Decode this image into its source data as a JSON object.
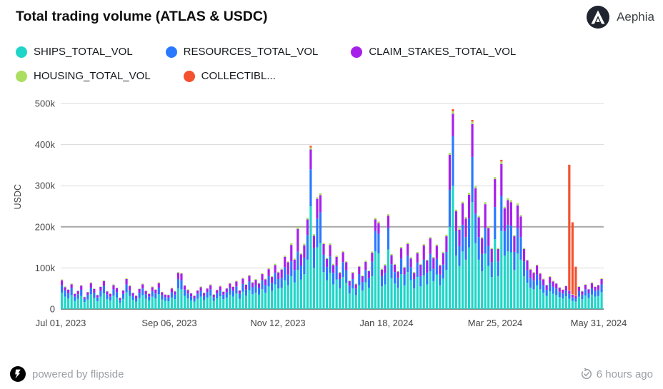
{
  "header": {
    "brand_name": "Aephia"
  },
  "footer": {
    "powered_by": "powered by flipside",
    "last_updated": "6 hours ago"
  },
  "chart_data": {
    "type": "stacked-bar",
    "title": "Total trading volume (ATLAS & USDC)",
    "ylabel": "USDC",
    "ylim_usdc": [
      0,
      500000
    ],
    "y_tick_labels": [
      "0",
      "100k",
      "200k",
      "300k",
      "400k",
      "500k"
    ],
    "x_tick_labels": [
      "Jul 01, 2023",
      "Sep 06, 2023",
      "Nov 12, 2023",
      "Jan 18, 2024",
      "Mar 25, 2024",
      "May 31, 2024"
    ],
    "legend_position": "top-left",
    "grid": "horizontal",
    "bar_row_format": "each row is one ~2-day bar: values in thousand USDC per series, in the order of 'series'",
    "series": [
      {
        "name": "SHIPS_TOTAL_VOL",
        "color": "#20d5c8"
      },
      {
        "name": "RESOURCES_TOTAL_VOL",
        "color": "#2979ff"
      },
      {
        "name": "CLAIM_STAKES_TOTAL_VOL",
        "color": "#a620ea"
      },
      {
        "name": "HOUSING_TOTAL_VOL",
        "color": "#abdf62"
      },
      {
        "name": "COLLECTIBL...",
        "color": "#f4512e"
      }
    ],
    "bars": [
      [
        40,
        18,
        12,
        2,
        0
      ],
      [
        30,
        15,
        8,
        2,
        0
      ],
      [
        26,
        12,
        9,
        1,
        0
      ],
      [
        34,
        17,
        9,
        2,
        0
      ],
      [
        20,
        10,
        7,
        1,
        0
      ],
      [
        25,
        11,
        8,
        1,
        0
      ],
      [
        32,
        15,
        10,
        1,
        0
      ],
      [
        17,
        8,
        4,
        1,
        0
      ],
      [
        23,
        11,
        7,
        1,
        0
      ],
      [
        36,
        16,
        11,
        2,
        0
      ],
      [
        27,
        13,
        9,
        1,
        0
      ],
      [
        19,
        9,
        6,
        1,
        0
      ],
      [
        30,
        14,
        10,
        1,
        0
      ],
      [
        38,
        18,
        12,
        2,
        0
      ],
      [
        24,
        11,
        8,
        1,
        0
      ],
      [
        21,
        9,
        7,
        1,
        0
      ],
      [
        33,
        15,
        10,
        2,
        0
      ],
      [
        28,
        13,
        10,
        1,
        0
      ],
      [
        15,
        7,
        5,
        1,
        0
      ],
      [
        25,
        12,
        8,
        1,
        0
      ],
      [
        41,
        19,
        13,
        2,
        0
      ],
      [
        32,
        14,
        10,
        2,
        0
      ],
      [
        22,
        10,
        7,
        1,
        0
      ],
      [
        18,
        8,
        6,
        1,
        0
      ],
      [
        27,
        13,
        9,
        1,
        0
      ],
      [
        34,
        16,
        10,
        2,
        0
      ],
      [
        25,
        11,
        8,
        1,
        0
      ],
      [
        21,
        9,
        7,
        1,
        0
      ],
      [
        30,
        14,
        9,
        2,
        0
      ],
      [
        26,
        12,
        9,
        1,
        0
      ],
      [
        36,
        16,
        11,
        2,
        0
      ],
      [
        23,
        11,
        7,
        1,
        0
      ],
      [
        20,
        9,
        6,
        1,
        0
      ],
      [
        19,
        9,
        6,
        1,
        0
      ],
      [
        28,
        13,
        9,
        2,
        0
      ],
      [
        24,
        11,
        8,
        1,
        0
      ],
      [
        50,
        23,
        15,
        2,
        0
      ],
      [
        48,
        22,
        16,
        2,
        0
      ],
      [
        32,
        15,
        10,
        1,
        0
      ],
      [
        26,
        12,
        8,
        2,
        0
      ],
      [
        21,
        10,
        7,
        1,
        0
      ],
      [
        18,
        8,
        6,
        1,
        0
      ],
      [
        25,
        12,
        8,
        1,
        0
      ],
      [
        30,
        14,
        9,
        2,
        0
      ],
      [
        22,
        10,
        7,
        1,
        0
      ],
      [
        28,
        13,
        9,
        1,
        0
      ],
      [
        33,
        15,
        10,
        2,
        0
      ],
      [
        20,
        9,
        6,
        1,
        0
      ],
      [
        26,
        12,
        8,
        1,
        0
      ],
      [
        31,
        14,
        10,
        2,
        0
      ],
      [
        24,
        11,
        7,
        1,
        0
      ],
      [
        28,
        13,
        9,
        1,
        0
      ],
      [
        35,
        16,
        11,
        2,
        0
      ],
      [
        30,
        14,
        10,
        1,
        0
      ],
      [
        38,
        17,
        12,
        2,
        0
      ],
      [
        25,
        12,
        8,
        1,
        0
      ],
      [
        42,
        19,
        13,
        2,
        0
      ],
      [
        33,
        15,
        11,
        1,
        0
      ],
      [
        46,
        21,
        14,
        2,
        0
      ],
      [
        36,
        17,
        11,
        2,
        0
      ],
      [
        40,
        18,
        13,
        2,
        0
      ],
      [
        35,
        16,
        11,
        2,
        0
      ],
      [
        48,
        22,
        15,
        2,
        0
      ],
      [
        40,
        19,
        13,
        2,
        0
      ],
      [
        55,
        25,
        17,
        3,
        0
      ],
      [
        44,
        20,
        14,
        2,
        0
      ],
      [
        60,
        28,
        19,
        3,
        0
      ],
      [
        50,
        23,
        16,
        2,
        0
      ],
      [
        52,
        24,
        20,
        2,
        0
      ],
      [
        70,
        32,
        25,
        3,
        0
      ],
      [
        58,
        26,
        30,
        2,
        0
      ],
      [
        80,
        36,
        40,
        4,
        0
      ],
      [
        65,
        30,
        25,
        3,
        0
      ],
      [
        95,
        45,
        55,
        5,
        0
      ],
      [
        72,
        33,
        28,
        3,
        0
      ],
      [
        85,
        40,
        30,
        4,
        0
      ],
      [
        120,
        60,
        38,
        4,
        0
      ],
      [
        250,
        90,
        48,
        5,
        4
      ],
      [
        100,
        48,
        30,
        4,
        0
      ],
      [
        150,
        70,
        48,
        4,
        0
      ],
      [
        160,
        75,
        42,
        5,
        0
      ],
      [
        90,
        42,
        26,
        3,
        0
      ],
      [
        70,
        32,
        20,
        3,
        0
      ],
      [
        88,
        40,
        28,
        4,
        0
      ],
      [
        60,
        28,
        19,
        3,
        0
      ],
      [
        72,
        33,
        22,
        3,
        0
      ],
      [
        50,
        23,
        15,
        2,
        0
      ],
      [
        78,
        36,
        24,
        3,
        0
      ],
      [
        64,
        30,
        20,
        2,
        0
      ],
      [
        38,
        18,
        12,
        2,
        0
      ],
      [
        50,
        23,
        15,
        2,
        0
      ],
      [
        34,
        16,
        10,
        2,
        0
      ],
      [
        58,
        27,
        18,
        2,
        0
      ],
      [
        45,
        21,
        14,
        2,
        0
      ],
      [
        65,
        30,
        20,
        3,
        0
      ],
      [
        52,
        24,
        16,
        2,
        0
      ],
      [
        80,
        35,
        22,
        3,
        0
      ],
      [
        140,
        50,
        28,
        4,
        0
      ],
      [
        135,
        48,
        26,
        4,
        0
      ],
      [
        55,
        25,
        16,
        2,
        0
      ],
      [
        60,
        28,
        18,
        3,
        0
      ],
      [
        145,
        52,
        30,
        4,
        0
      ],
      [
        75,
        34,
        22,
        3,
        0
      ],
      [
        62,
        28,
        18,
        2,
        0
      ],
      [
        52,
        24,
        15,
        2,
        0
      ],
      [
        85,
        38,
        25,
        3,
        0
      ],
      [
        58,
        26,
        17,
        2,
        0
      ],
      [
        90,
        40,
        28,
        4,
        0
      ],
      [
        70,
        32,
        21,
        3,
        0
      ],
      [
        50,
        23,
        15,
        2,
        0
      ],
      [
        78,
        35,
        23,
        3,
        0
      ],
      [
        55,
        25,
        28,
        2,
        0
      ],
      [
        82,
        38,
        35,
        3,
        0
      ],
      [
        60,
        28,
        30,
        2,
        0
      ],
      [
        92,
        42,
        38,
        3,
        0
      ],
      [
        68,
        30,
        26,
        3,
        0
      ],
      [
        84,
        38,
        32,
        3,
        0
      ],
      [
        58,
        26,
        22,
        2,
        0
      ],
      [
        74,
        34,
        28,
        3,
        0
      ],
      [
        95,
        44,
        38,
        4,
        0
      ],
      [
        200,
        90,
        85,
        5,
        0
      ],
      [
        300,
        120,
        55,
        6,
        5
      ],
      [
        130,
        60,
        48,
        4,
        0
      ],
      [
        105,
        48,
        40,
        4,
        0
      ],
      [
        140,
        65,
        52,
        4,
        0
      ],
      [
        120,
        55,
        45,
        4,
        0
      ],
      [
        150,
        70,
        58,
        5,
        0
      ],
      [
        260,
        110,
        80,
        6,
        4
      ],
      [
        160,
        72,
        62,
        5,
        0
      ],
      [
        120,
        55,
        48,
        4,
        0
      ],
      [
        92,
        42,
        38,
        3,
        0
      ],
      [
        135,
        62,
        58,
        5,
        0
      ],
      [
        105,
        48,
        44,
        4,
        0
      ],
      [
        78,
        36,
        32,
        3,
        0
      ],
      [
        170,
        78,
        68,
        5,
        0
      ],
      [
        80,
        36,
        30,
        3,
        0
      ],
      [
        190,
        85,
        78,
        6,
        4
      ],
      [
        130,
        60,
        55,
        4,
        0
      ],
      [
        140,
        65,
        60,
        5,
        0
      ],
      [
        138,
        64,
        58,
        5,
        0
      ],
      [
        95,
        44,
        38,
        3,
        0
      ],
      [
        135,
        62,
        55,
        5,
        0
      ],
      [
        120,
        55,
        50,
        4,
        0
      ],
      [
        80,
        36,
        30,
        3,
        0
      ],
      [
        64,
        30,
        24,
        2,
        0
      ],
      [
        52,
        24,
        20,
        2,
        0
      ],
      [
        48,
        22,
        18,
        2,
        0
      ],
      [
        58,
        26,
        22,
        2,
        0
      ],
      [
        48,
        22,
        16,
        2,
        0
      ],
      [
        40,
        18,
        14,
        2,
        0
      ],
      [
        32,
        15,
        11,
        1,
        0
      ],
      [
        43,
        20,
        15,
        2,
        0
      ],
      [
        37,
        17,
        13,
        2,
        0
      ],
      [
        34,
        16,
        12,
        1,
        0
      ],
      [
        29,
        13,
        10,
        1,
        0
      ],
      [
        26,
        12,
        9,
        1,
        0
      ],
      [
        31,
        14,
        11,
        1,
        0
      ],
      [
        25,
        12,
        8,
        1,
        305
      ],
      [
        20,
        9,
        6,
        1,
        175
      ],
      [
        18,
        8,
        6,
        1,
        70
      ],
      [
        30,
        14,
        10,
        1,
        0
      ],
      [
        24,
        11,
        8,
        1,
        0
      ],
      [
        33,
        15,
        11,
        1,
        0
      ],
      [
        27,
        12,
        9,
        1,
        0
      ],
      [
        35,
        16,
        12,
        2,
        0
      ],
      [
        30,
        14,
        10,
        1,
        0
      ],
      [
        32,
        15,
        11,
        1,
        0
      ],
      [
        41,
        19,
        13,
        2,
        0
      ]
    ]
  }
}
